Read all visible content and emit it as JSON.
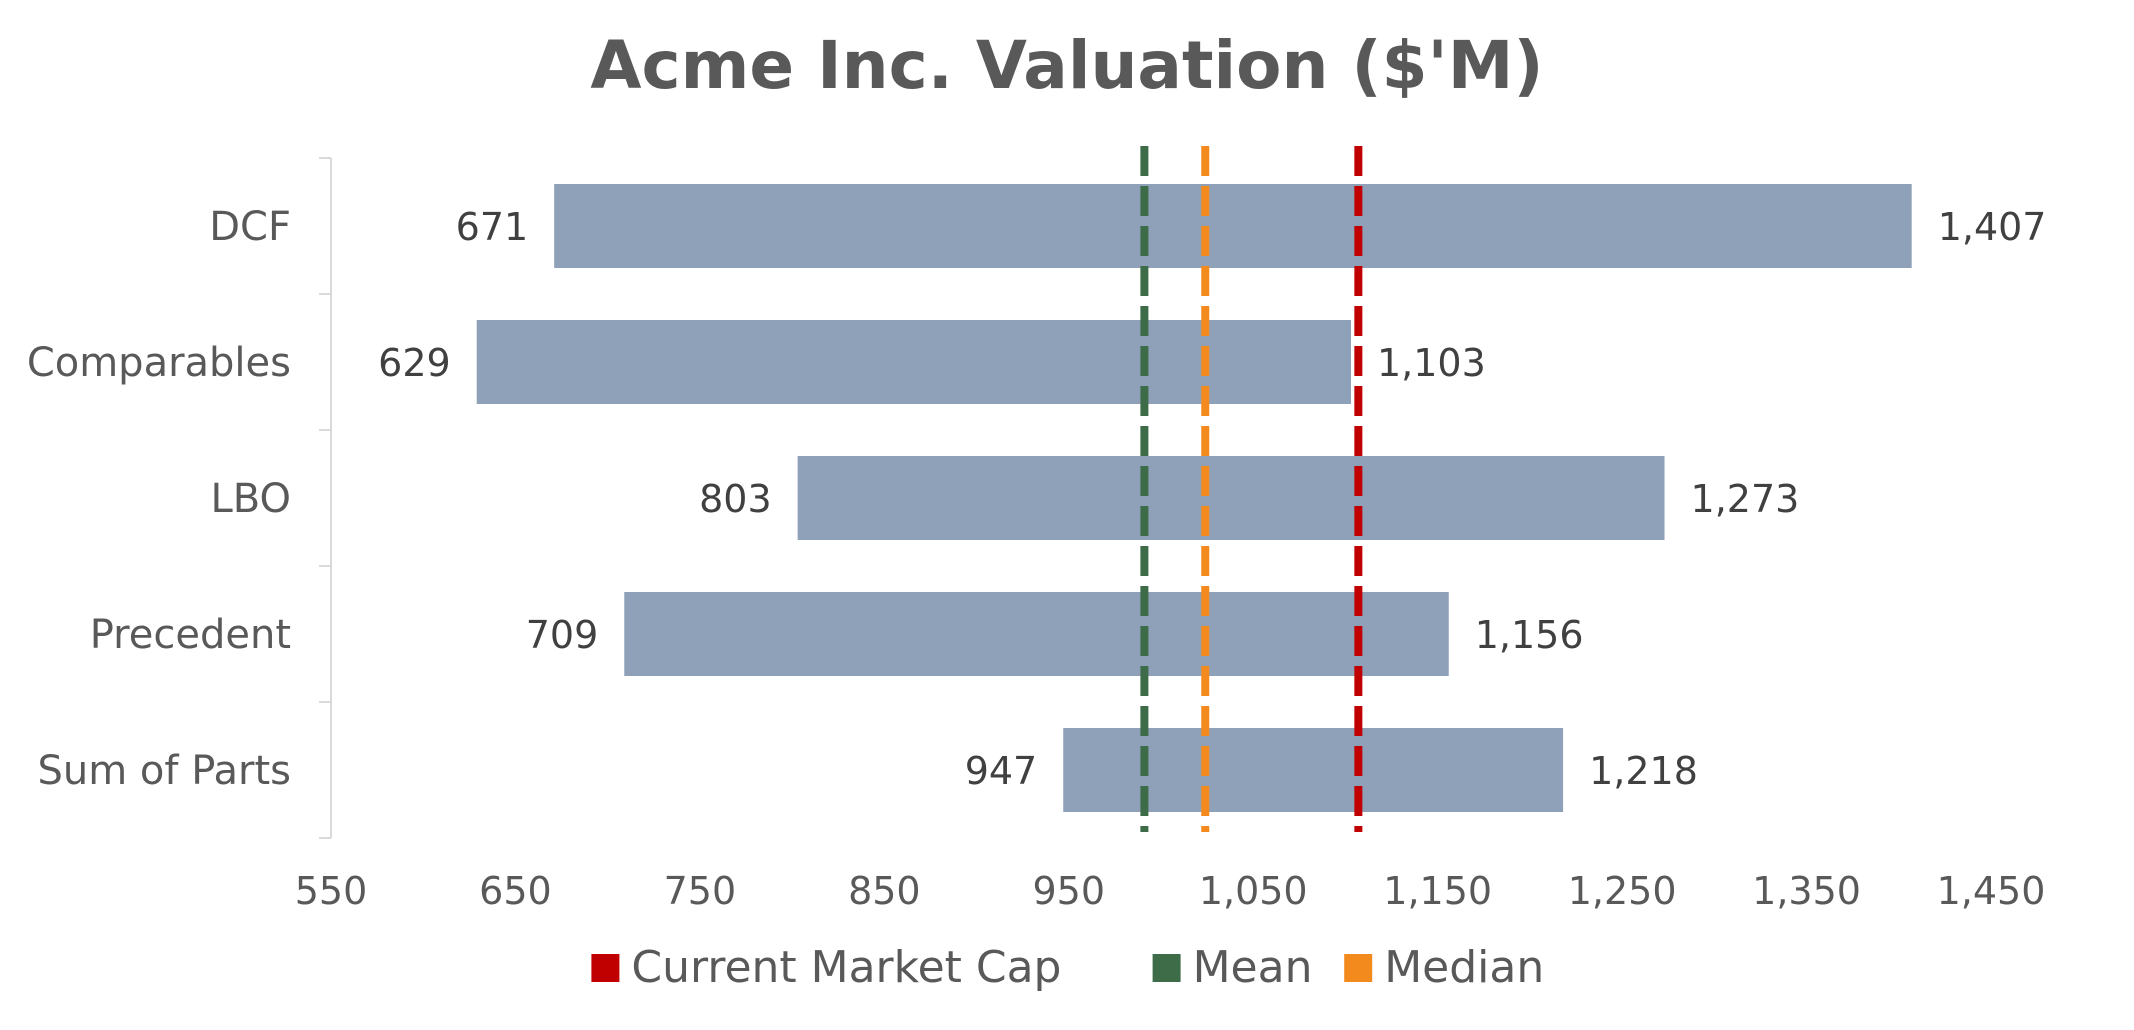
{
  "chart_data": {
    "type": "floating-bar",
    "title": "Acme Inc. Valuation ($'M)",
    "categories": [
      "DCF",
      "Comparables",
      "LBO",
      "Precedent",
      "Sum of Parts"
    ],
    "low": [
      671,
      629,
      803,
      709,
      947
    ],
    "high": [
      1407,
      1103,
      1273,
      1156,
      1218
    ],
    "low_labels": [
      "671",
      "629",
      "803",
      "709",
      "947"
    ],
    "high_labels": [
      "1,407",
      "1,103",
      "1,273",
      "1,156",
      "1,218"
    ],
    "xlim": [
      550,
      1450
    ],
    "x_ticks": [
      550,
      650,
      750,
      850,
      950,
      1050,
      1150,
      1250,
      1350,
      1450
    ],
    "x_tick_labels": [
      "550",
      "650",
      "750",
      "850",
      "950",
      "1,050",
      "1,150",
      "1,250",
      "1,350",
      "1,450"
    ],
    "reference_lines": [
      {
        "name": "Current Market Cap",
        "value": 1107,
        "color": "#C00000"
      },
      {
        "name": "Mean",
        "value": 991,
        "color": "#3E6B48"
      },
      {
        "name": "Median",
        "value": 1024,
        "color": "#F28A1E"
      }
    ],
    "bar_color": "#8FA0B9",
    "legend_position": "bottom"
  }
}
